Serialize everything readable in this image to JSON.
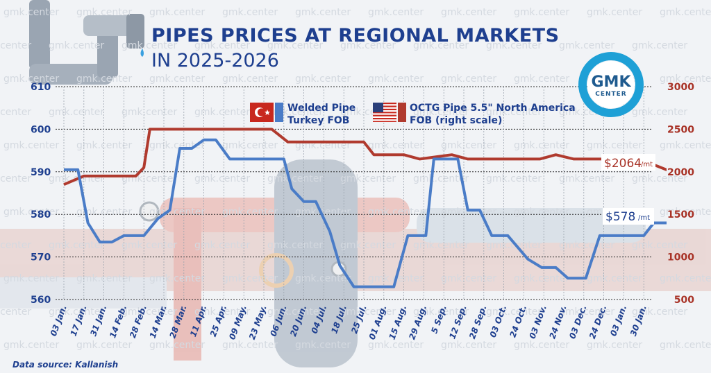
{
  "title_line1": "PIPES PRICES AT REGIONAL MARKETS",
  "title_line2": "IN 2025-2026",
  "source": "Data source: Kallanish",
  "watermark": "gmk.center",
  "logo": {
    "main": "GMK",
    "sub": "CENTER"
  },
  "colors": {
    "blue": "#4a7cc7",
    "red": "#b03a2e",
    "navy": "#1e3f8f",
    "logo": "#1ea0d6"
  },
  "legend": [
    {
      "flag": "turkey-flag-icon",
      "line1": "Welded Pipe",
      "line2": "Turkey FOB"
    },
    {
      "flag": "usa-flag-icon",
      "line1": "OCTG Pipe 5.5\" North America",
      "line2": "FOB (right scale)"
    }
  ],
  "annotations": {
    "red": {
      "value": "$2064",
      "unit": "/mt"
    },
    "blue": {
      "value": "$578",
      "unit": "/mt"
    }
  },
  "chart_data": {
    "type": "line",
    "title": "PIPES PRICES AT REGIONAL MARKETS IN 2025-2026",
    "x_categories": [
      "03 Jan.",
      "17 Jan.",
      "31 Jan.",
      "14 Feb.",
      "28 Feb.",
      "14 Mar.",
      "28 Mar.",
      "11 Apr.",
      "25 Apr.",
      "09 May.",
      "23 May.",
      "06 Jun.",
      "20 Jun.",
      "04 Jul.",
      "18 Jul.",
      "25 Jul.",
      "01 Aug.",
      "15 Aug.",
      "29 Aug.",
      "5 Sep.",
      "12 Sep.",
      "28 Sep.",
      "03 Oct.",
      "24 Oct.",
      "03 Nov.",
      "24 Nov.",
      "03 Dec.",
      "24 Dec.",
      "03 Jan.",
      "30 Jan."
    ],
    "left_axis": {
      "ylim": [
        560,
        610
      ],
      "ticks": [
        560,
        570,
        580,
        590,
        600,
        610
      ]
    },
    "right_axis": {
      "ylim": [
        500,
        3000
      ],
      "ticks": [
        500,
        1000,
        1500,
        2000,
        2500,
        3000
      ]
    },
    "series": [
      {
        "name": "Welded Pipe Turkey FOB",
        "axis": "left",
        "points": [
          [
            0,
            590.5
          ],
          [
            0.7,
            590.5
          ],
          [
            1.2,
            578
          ],
          [
            1.8,
            573.5
          ],
          [
            2.4,
            573.5
          ],
          [
            3,
            575
          ],
          [
            4,
            575
          ],
          [
            4.7,
            579
          ],
          [
            5.3,
            581
          ],
          [
            5.8,
            595.5
          ],
          [
            6.4,
            595.5
          ],
          [
            7,
            597.5
          ],
          [
            7.6,
            597.5
          ],
          [
            8.3,
            593
          ],
          [
            10.4,
            593
          ],
          [
            11,
            593
          ],
          [
            11.4,
            586
          ],
          [
            12,
            583
          ],
          [
            12.6,
            583
          ],
          [
            13.3,
            576
          ],
          [
            13.8,
            568
          ],
          [
            14.5,
            563
          ],
          [
            15.4,
            563
          ],
          [
            16.5,
            563
          ],
          [
            17.2,
            575
          ],
          [
            18.1,
            575
          ],
          [
            18.5,
            593
          ],
          [
            19.7,
            593
          ],
          [
            20.2,
            581
          ],
          [
            20.8,
            581
          ],
          [
            21.4,
            575
          ],
          [
            22.2,
            575
          ],
          [
            23.2,
            569.5
          ],
          [
            23.9,
            567.5
          ],
          [
            24.6,
            567.5
          ],
          [
            25.2,
            565
          ],
          [
            26.1,
            565
          ],
          [
            26.8,
            575
          ],
          [
            29,
            575
          ],
          [
            29.5,
            578
          ],
          [
            30.4,
            578
          ]
        ]
      },
      {
        "name": "OCTG Pipe 5.5\" North America FOB",
        "axis": "right",
        "points": [
          [
            0,
            1850
          ],
          [
            1,
            1950
          ],
          [
            2,
            1950
          ],
          [
            3.6,
            1950
          ],
          [
            4,
            2050
          ],
          [
            4.3,
            2500
          ],
          [
            10.4,
            2500
          ],
          [
            11.2,
            2350
          ],
          [
            12,
            2350
          ],
          [
            15,
            2350
          ],
          [
            15.5,
            2200
          ],
          [
            17,
            2200
          ],
          [
            17.8,
            2150
          ],
          [
            19.4,
            2200
          ],
          [
            20.2,
            2150
          ],
          [
            22.5,
            2150
          ],
          [
            23.8,
            2150
          ],
          [
            24.6,
            2200
          ],
          [
            25.5,
            2150
          ],
          [
            27.5,
            2150
          ],
          [
            28.4,
            2100
          ],
          [
            29.3,
            2100
          ],
          [
            29.7,
            2064
          ],
          [
            30.4,
            2000
          ]
        ]
      }
    ],
    "grid": true,
    "legend_position": "top-center"
  }
}
